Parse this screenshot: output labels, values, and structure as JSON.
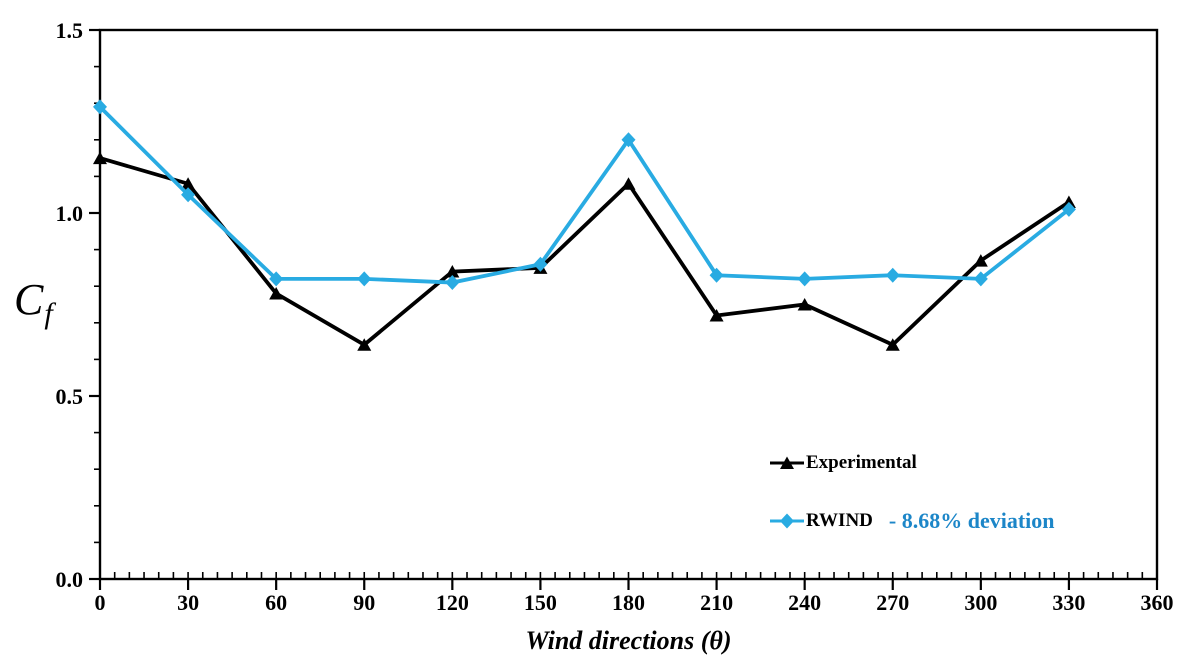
{
  "figure": {
    "background": "#ffffff"
  },
  "chart_data": {
    "type": "line",
    "title": "",
    "xlabel": "Wind directions (θ)",
    "ylabel": "Cf",
    "ylabel_main": "C",
    "ylabel_sub": "f",
    "xlim": [
      0,
      360
    ],
    "ylim": [
      0.0,
      1.5
    ],
    "grid": false,
    "legend_position": "inside lower-right",
    "x": [
      0,
      30,
      60,
      90,
      120,
      150,
      180,
      210,
      240,
      270,
      300,
      330
    ],
    "series": [
      {
        "name": "Experimental",
        "color": "#000000",
        "marker": "triangle",
        "values": [
          1.15,
          1.08,
          0.78,
          0.64,
          0.84,
          0.85,
          1.08,
          0.72,
          0.75,
          0.64,
          0.87,
          1.03
        ]
      },
      {
        "name": "RWIND",
        "color": "#29ABE2",
        "marker": "diamond",
        "values": [
          1.29,
          1.05,
          0.82,
          0.82,
          0.81,
          0.86,
          1.2,
          0.83,
          0.82,
          0.83,
          0.82,
          1.01
        ]
      }
    ],
    "x_major_ticks": [
      0,
      30,
      60,
      90,
      120,
      150,
      180,
      210,
      240,
      270,
      300,
      330,
      360
    ],
    "x_tick_labels": [
      "0",
      "30",
      "60",
      "90",
      "120",
      "150",
      "180",
      "210",
      "240",
      "270",
      "300",
      "330",
      "360"
    ],
    "x_minor_step": 5,
    "y_major_ticks": [
      0.0,
      0.5,
      1.0,
      1.5
    ],
    "y_tick_labels": [
      "0.0",
      "0.5",
      "1.0",
      "1.5"
    ],
    "y_minor_step": 0.1
  },
  "legend": {
    "items": [
      {
        "label": "Experimental",
        "note": "",
        "color": "#000000",
        "note_color": "#000000",
        "marker": "triangle"
      },
      {
        "label": "RWIND",
        "note": "- 8.68% deviation",
        "color": "#29ABE2",
        "note_color": "#1C86C8",
        "marker": "diamond"
      }
    ]
  },
  "colors": {
    "axis": "#000000",
    "experimental": "#000000",
    "rwind": "#29ABE2",
    "deviation_text": "#1C86C8"
  }
}
